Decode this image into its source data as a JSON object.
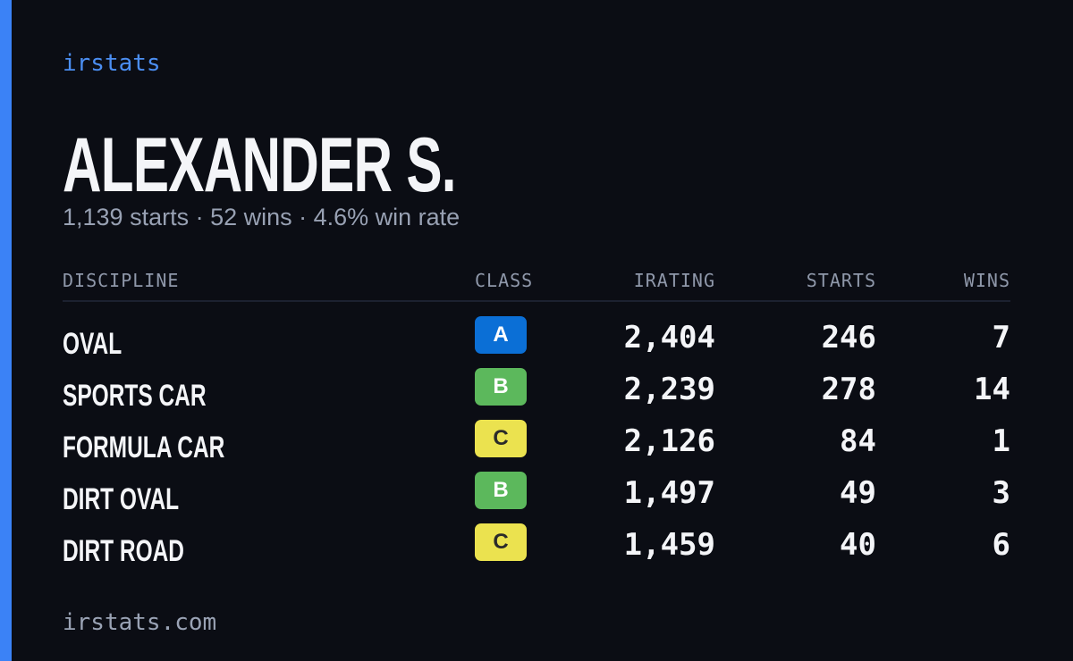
{
  "brand": "irstats",
  "name": "ALEXANDER S.",
  "summary": "1,139 starts · 52 wins · 4.6% win rate",
  "table": {
    "headers": [
      "DISCIPLINE",
      "CLASS",
      "IRATING",
      "STARTS",
      "WINS"
    ],
    "rows": [
      {
        "discipline": "OVAL",
        "class": "A",
        "class_color": "#0b6fd6",
        "class_text_color": "#ffffff",
        "irating": "2,404",
        "starts": "246",
        "wins": "7"
      },
      {
        "discipline": "SPORTS CAR",
        "class": "B",
        "class_color": "#5cb85c",
        "class_text_color": "#ffffff",
        "irating": "2,239",
        "starts": "278",
        "wins": "14"
      },
      {
        "discipline": "FORMULA CAR",
        "class": "C",
        "class_color": "#ebe24f",
        "class_text_color": "#2a2a2a",
        "irating": "2,126",
        "starts": "84",
        "wins": "1"
      },
      {
        "discipline": "DIRT OVAL",
        "class": "B",
        "class_color": "#5cb85c",
        "class_text_color": "#ffffff",
        "irating": "1,497",
        "starts": "49",
        "wins": "3"
      },
      {
        "discipline": "DIRT ROAD",
        "class": "C",
        "class_color": "#ebe24f",
        "class_text_color": "#2a2a2a",
        "irating": "1,459",
        "starts": "40",
        "wins": "6"
      }
    ]
  },
  "footer": "irstats.com"
}
